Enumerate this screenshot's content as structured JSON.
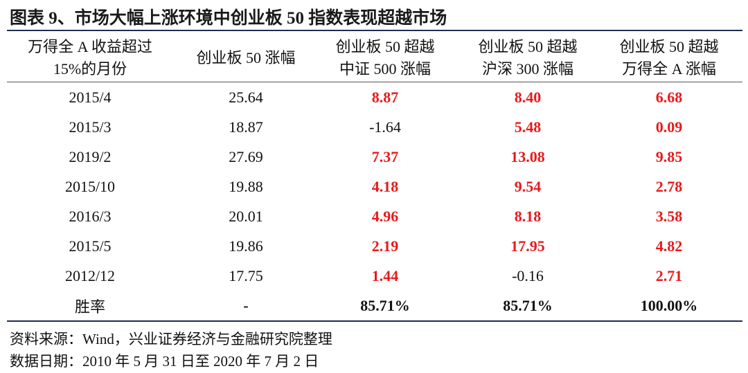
{
  "title": "图表 9、市场大幅上涨环境中创业板 50 指数表现超越市场",
  "table": {
    "header": [
      [
        "万得全 A 收益超过",
        "15%的月份"
      ],
      [
        "创业板 50 涨幅"
      ],
      [
        "创业板 50 超越",
        "中证 500 涨幅"
      ],
      [
        "创业板 50 超越",
        "沪深 300 涨幅"
      ],
      [
        "创业板 50 超越",
        "万得全 A 涨幅"
      ]
    ],
    "rows": [
      [
        "2015/4",
        "25.64",
        "8.87",
        "8.40",
        "6.68"
      ],
      [
        "2015/3",
        "18.87",
        "-1.64",
        "5.48",
        "0.09"
      ],
      [
        "2019/2",
        "27.69",
        "7.37",
        "13.08",
        "9.85"
      ],
      [
        "2015/10",
        "19.88",
        "4.18",
        "9.54",
        "2.78"
      ],
      [
        "2016/3",
        "20.01",
        "4.96",
        "8.18",
        "3.58"
      ],
      [
        "2015/5",
        "19.86",
        "2.19",
        "17.95",
        "4.82"
      ],
      [
        "2012/12",
        "17.75",
        "1.44",
        "-0.16",
        "2.71"
      ],
      [
        "胜率",
        "-",
        "85.71%",
        "85.71%",
        "100.00%"
      ]
    ]
  },
  "footnotes": [
    "资料来源：Wind，兴业证券经济与金融研究院整理",
    "数据日期：2010 年 5 月 31 日至 2020 年 7 月 2 日"
  ]
}
